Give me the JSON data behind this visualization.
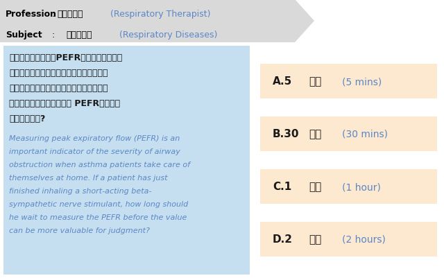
{
  "bg_color": "#ffffff",
  "header_bg": "#d9d9d9",
  "question_bg": "#c5dff0",
  "answer_bg": "#fde8d0",
  "cn_color": "#1a1a1a",
  "en_color": "#5b87c5",
  "black": "#000000",
  "header_rows": [
    {
      "label": "Profession",
      "colon": ":",
      "cn": "呼吸治療師",
      "en": "(Respiratory Therapist)"
    },
    {
      "label": "Subject",
      "colon": ":",
      "cn": "呼吸疾病學",
      "en": "(Respiratory Diseases)"
    }
  ],
  "question_cn_lines": [
    "測量尖峰吐氣流量（PEFR）是氣喘病人居家",
    "自我照護時，氣道阻塞嚴重度的重要指標。",
    "需衛教病人若剛吸完短效型乙型交感神經刺",
    "激劑時，需再等待多久測量 PEFR，數值會",
    "較有判斷價值?"
  ],
  "question_en_lines": [
    "Measuring peak expiratory flow (PEFR) is an",
    "important indicator of the severity of airway",
    "obstruction when asthma patients take care of",
    "themselves at home. If a patient has just",
    "finished inhaling a short-acting beta-",
    "sympathetic nerve stimulant, how long should",
    "he wait to measure the PEFR before the value",
    "can be more valuable for judgment?"
  ],
  "answers": [
    {
      "label": "A.5",
      "cn": "分鐘",
      "en": "(5 mins)"
    },
    {
      "label": "B.30",
      "cn": "分鐘",
      "en": "(30 mins)"
    },
    {
      "label": "C.1",
      "cn": "小時",
      "en": "(1 hour)"
    },
    {
      "label": "D.2",
      "cn": "小時",
      "en": "(2 hours)"
    }
  ]
}
